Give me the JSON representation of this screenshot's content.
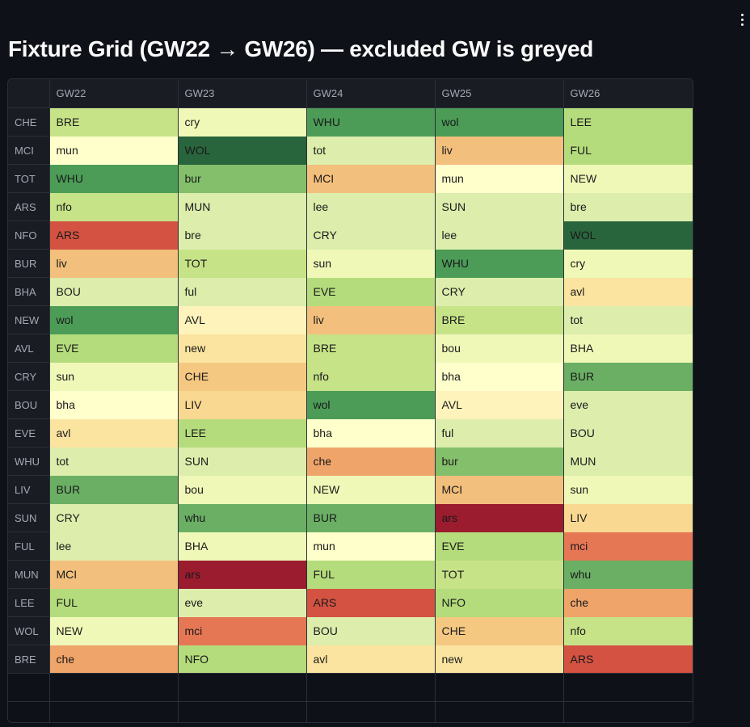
{
  "title": "Fixture Grid (GW22 → GW26) — excluded GW is greyed",
  "columns": [
    "",
    "GW22",
    "GW23",
    "GW24",
    "GW25",
    "GW26"
  ],
  "rows": [
    {
      "team": "CHE",
      "cells": [
        [
          "BRE",
          "#c7e388"
        ],
        [
          "cry",
          "#f0f8b8"
        ],
        [
          "WHU",
          "#4c9c57"
        ],
        [
          "wol",
          "#4c9c57"
        ],
        [
          "LEE",
          "#b5dc7c"
        ]
      ]
    },
    {
      "team": "MCI",
      "cells": [
        [
          "mun",
          "#ffffcc"
        ],
        [
          "WOL",
          "#29653c"
        ],
        [
          "tot",
          "#dcedac"
        ],
        [
          "liv",
          "#f3bf7c"
        ],
        [
          "FUL",
          "#b5dc7c"
        ]
      ]
    },
    {
      "team": "TOT",
      "cells": [
        [
          "WHU",
          "#4c9c57"
        ],
        [
          "bur",
          "#84c06b"
        ],
        [
          "MCI",
          "#f3bf7c"
        ],
        [
          "mun",
          "#ffffcc"
        ],
        [
          "NEW",
          "#f0f8b8"
        ]
      ]
    },
    {
      "team": "ARS",
      "cells": [
        [
          "nfo",
          "#c7e388"
        ],
        [
          "MUN",
          "#dcedac"
        ],
        [
          "lee",
          "#dcedac"
        ],
        [
          "SUN",
          "#dcedac"
        ],
        [
          "bre",
          "#dcedac"
        ]
      ]
    },
    {
      "team": "NFO",
      "cells": [
        [
          "ARS",
          "#d35242"
        ],
        [
          "bre",
          "#dcedac"
        ],
        [
          "CRY",
          "#dcedac"
        ],
        [
          "lee",
          "#dcedac"
        ],
        [
          "WOL",
          "#29653c"
        ]
      ]
    },
    {
      "team": "BUR",
      "cells": [
        [
          "liv",
          "#f3bf7c"
        ],
        [
          "TOT",
          "#c7e388"
        ],
        [
          "sun",
          "#f0f8b8"
        ],
        [
          "WHU",
          "#4c9c57"
        ],
        [
          "cry",
          "#f0f8b8"
        ]
      ]
    },
    {
      "team": "BHA",
      "cells": [
        [
          "BOU",
          "#dcedac"
        ],
        [
          "ful",
          "#dcedac"
        ],
        [
          "EVE",
          "#b5dc7c"
        ],
        [
          "CRY",
          "#dcedac"
        ],
        [
          "avl",
          "#fbe4a0"
        ]
      ]
    },
    {
      "team": "NEW",
      "cells": [
        [
          "wol",
          "#4c9c57"
        ],
        [
          "AVL",
          "#fdf3bb"
        ],
        [
          "liv",
          "#f3bf7c"
        ],
        [
          "BRE",
          "#c7e388"
        ],
        [
          "tot",
          "#dcedac"
        ]
      ]
    },
    {
      "team": "AVL",
      "cells": [
        [
          "EVE",
          "#b5dc7c"
        ],
        [
          "new",
          "#fbe4a0"
        ],
        [
          "BRE",
          "#c7e388"
        ],
        [
          "bou",
          "#f0f8b8"
        ],
        [
          "BHA",
          "#f0f8b8"
        ]
      ]
    },
    {
      "team": "CRY",
      "cells": [
        [
          "sun",
          "#f0f8b8"
        ],
        [
          "CHE",
          "#f5c882"
        ],
        [
          "nfo",
          "#c7e388"
        ],
        [
          "bha",
          "#ffffcc"
        ],
        [
          "BUR",
          "#6aaf64"
        ]
      ]
    },
    {
      "team": "BOU",
      "cells": [
        [
          "bha",
          "#ffffcc"
        ],
        [
          "LIV",
          "#f9d891"
        ],
        [
          "wol",
          "#4c9c57"
        ],
        [
          "AVL",
          "#fdf3bb"
        ],
        [
          "eve",
          "#dcedac"
        ]
      ]
    },
    {
      "team": "EVE",
      "cells": [
        [
          "avl",
          "#fbe4a0"
        ],
        [
          "LEE",
          "#b5dc7c"
        ],
        [
          "bha",
          "#ffffcc"
        ],
        [
          "ful",
          "#dcedac"
        ],
        [
          "BOU",
          "#dcedac"
        ]
      ]
    },
    {
      "team": "WHU",
      "cells": [
        [
          "tot",
          "#dcedac"
        ],
        [
          "SUN",
          "#dcedac"
        ],
        [
          "che",
          "#efa46a"
        ],
        [
          "bur",
          "#84c06b"
        ],
        [
          "MUN",
          "#dcedac"
        ]
      ]
    },
    {
      "team": "LIV",
      "cells": [
        [
          "BUR",
          "#6aaf64"
        ],
        [
          "bou",
          "#f0f8b8"
        ],
        [
          "NEW",
          "#f0f8b8"
        ],
        [
          "MCI",
          "#f3bf7c"
        ],
        [
          "sun",
          "#f0f8b8"
        ]
      ]
    },
    {
      "team": "SUN",
      "cells": [
        [
          "CRY",
          "#dcedac"
        ],
        [
          "whu",
          "#6aaf64"
        ],
        [
          "BUR",
          "#6aaf64"
        ],
        [
          "ars",
          "#9b1c2e"
        ],
        [
          "LIV",
          "#f9d891"
        ]
      ]
    },
    {
      "team": "FUL",
      "cells": [
        [
          "lee",
          "#dcedac"
        ],
        [
          "BHA",
          "#f0f8b8"
        ],
        [
          "mun",
          "#ffffcc"
        ],
        [
          "EVE",
          "#b5dc7c"
        ],
        [
          "mci",
          "#e67755"
        ]
      ]
    },
    {
      "team": "MUN",
      "cells": [
        [
          "MCI",
          "#f3bf7c"
        ],
        [
          "ars",
          "#9b1c2e"
        ],
        [
          "FUL",
          "#b5dc7c"
        ],
        [
          "TOT",
          "#c7e388"
        ],
        [
          "whu",
          "#6aaf64"
        ]
      ]
    },
    {
      "team": "LEE",
      "cells": [
        [
          "FUL",
          "#b5dc7c"
        ],
        [
          "eve",
          "#dcedac"
        ],
        [
          "ARS",
          "#d35242"
        ],
        [
          "NFO",
          "#b5dc7c"
        ],
        [
          "che",
          "#efa46a"
        ]
      ]
    },
    {
      "team": "WOL",
      "cells": [
        [
          "NEW",
          "#f0f8b8"
        ],
        [
          "mci",
          "#e67755"
        ],
        [
          "BOU",
          "#dcedac"
        ],
        [
          "CHE",
          "#f5c882"
        ],
        [
          "nfo",
          "#c7e388"
        ]
      ]
    },
    {
      "team": "BRE",
      "cells": [
        [
          "che",
          "#efa46a"
        ],
        [
          "NFO",
          "#b5dc7c"
        ],
        [
          "avl",
          "#fbe4a0"
        ],
        [
          "new",
          "#fbe4a0"
        ],
        [
          "ARS",
          "#d35242"
        ]
      ]
    }
  ],
  "empty_rows": 2
}
